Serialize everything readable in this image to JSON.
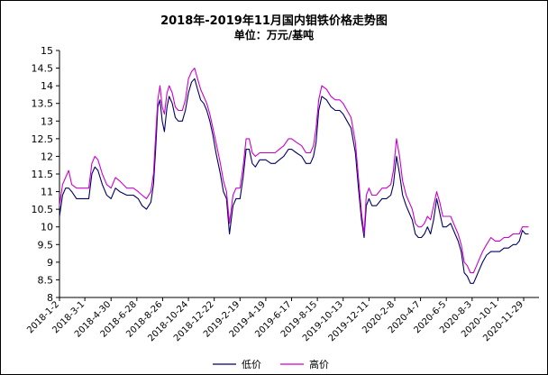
{
  "chart_data": {
    "type": "line",
    "title": "2018年-2019年11月国内钼铁价格走势图",
    "subtitle": "单位：万元/基吨",
    "xlabel": "",
    "ylabel": "",
    "ylim": [
      8,
      15
    ],
    "yticks": [
      "8",
      "8.5",
      "9",
      "9.5",
      "10",
      "10.5",
      "11",
      "11.5",
      "12",
      "12.5",
      "13",
      "13.5",
      "14",
      "14.5",
      "15"
    ],
    "x_tick_labels": [
      "2018-1-2",
      "2018-3-1",
      "2018-4-30",
      "2018-6-28",
      "2018-8-26",
      "2018-10-24",
      "2018-12-22",
      "2019-2-19",
      "2019-4-19",
      "2019-6-17",
      "2019-8-15",
      "2019-10-13",
      "2019-12-11",
      "2020-2-8",
      "2020-4-7",
      "2020-6-5",
      "2020-8-3",
      "2020-10-1",
      "2020-11-29"
    ],
    "x_range": [
      "2018-1-2",
      "2021-1-3"
    ],
    "grid": false,
    "legend_position": "bottom",
    "series": [
      {
        "name": "低价",
        "color": "#000066",
        "points": [
          [
            "2018-1-2",
            10.3
          ],
          [
            "2018-1-9",
            10.9
          ],
          [
            "2018-1-16",
            11.1
          ],
          [
            "2018-1-23",
            11.1
          ],
          [
            "2018-1-30",
            11.0
          ],
          [
            "2018-2-10",
            10.8
          ],
          [
            "2018-2-28",
            10.8
          ],
          [
            "2018-3-10",
            10.8
          ],
          [
            "2018-3-17",
            11.5
          ],
          [
            "2018-3-24",
            11.7
          ],
          [
            "2018-3-31",
            11.6
          ],
          [
            "2018-4-10",
            11.2
          ],
          [
            "2018-4-20",
            10.9
          ],
          [
            "2018-4-30",
            10.8
          ],
          [
            "2018-5-10",
            11.1
          ],
          [
            "2018-5-20",
            11.0
          ],
          [
            "2018-6-5",
            10.9
          ],
          [
            "2018-6-20",
            10.9
          ],
          [
            "2018-7-1",
            10.8
          ],
          [
            "2018-7-10",
            10.6
          ],
          [
            "2018-7-20",
            10.5
          ],
          [
            "2018-7-30",
            10.7
          ],
          [
            "2018-8-5",
            11.2
          ],
          [
            "2018-8-10",
            12.2
          ],
          [
            "2018-8-15",
            13.4
          ],
          [
            "2018-8-20",
            13.6
          ],
          [
            "2018-8-25",
            13.0
          ],
          [
            "2018-8-30",
            12.7
          ],
          [
            "2018-9-5",
            13.4
          ],
          [
            "2018-9-10",
            13.7
          ],
          [
            "2018-9-17",
            13.5
          ],
          [
            "2018-9-24",
            13.1
          ],
          [
            "2018-10-1",
            13.0
          ],
          [
            "2018-10-10",
            13.0
          ],
          [
            "2018-10-17",
            13.3
          ],
          [
            "2018-10-24",
            13.8
          ],
          [
            "2018-10-31",
            14.1
          ],
          [
            "2018-11-7",
            14.2
          ],
          [
            "2018-11-14",
            13.9
          ],
          [
            "2018-11-21",
            13.6
          ],
          [
            "2018-11-28",
            13.5
          ],
          [
            "2018-12-5",
            13.3
          ],
          [
            "2018-12-12",
            13.0
          ],
          [
            "2018-12-19",
            12.6
          ],
          [
            "2018-12-26",
            12.1
          ],
          [
            "2019-1-5",
            11.5
          ],
          [
            "2019-1-12",
            11.0
          ],
          [
            "2019-1-19",
            10.8
          ],
          [
            "2019-1-26",
            9.8
          ],
          [
            "2019-2-3",
            10.6
          ],
          [
            "2019-2-10",
            10.8
          ],
          [
            "2019-2-19",
            10.8
          ],
          [
            "2019-2-26",
            11.4
          ],
          [
            "2019-3-5",
            12.2
          ],
          [
            "2019-3-12",
            12.2
          ],
          [
            "2019-3-19",
            11.8
          ],
          [
            "2019-3-26",
            11.7
          ],
          [
            "2019-4-5",
            11.9
          ],
          [
            "2019-4-19",
            11.9
          ],
          [
            "2019-5-1",
            11.8
          ],
          [
            "2019-5-10",
            11.8
          ],
          [
            "2019-5-20",
            11.9
          ],
          [
            "2019-5-30",
            12.0
          ],
          [
            "2019-6-10",
            12.2
          ],
          [
            "2019-6-17",
            12.2
          ],
          [
            "2019-6-28",
            12.1
          ],
          [
            "2019-7-10",
            12.0
          ],
          [
            "2019-7-20",
            11.8
          ],
          [
            "2019-7-30",
            11.8
          ],
          [
            "2019-8-6",
            12.0
          ],
          [
            "2019-8-12",
            12.4
          ],
          [
            "2019-8-18",
            13.3
          ],
          [
            "2019-8-25",
            13.7
          ],
          [
            "2019-9-5",
            13.6
          ],
          [
            "2019-9-15",
            13.4
          ],
          [
            "2019-9-25",
            13.3
          ],
          [
            "2019-10-5",
            13.3
          ],
          [
            "2019-10-13",
            13.2
          ],
          [
            "2019-10-22",
            13.0
          ],
          [
            "2019-10-31",
            12.8
          ],
          [
            "2019-11-10",
            12.1
          ],
          [
            "2019-11-17",
            11.1
          ],
          [
            "2019-11-24",
            10.2
          ],
          [
            "2019-11-30",
            9.7
          ],
          [
            "2019-12-5",
            10.6
          ],
          [
            "2019-12-11",
            10.8
          ],
          [
            "2019-12-18",
            10.6
          ],
          [
            "2019-12-28",
            10.6
          ],
          [
            "2020-1-10",
            10.8
          ],
          [
            "2020-1-20",
            10.8
          ],
          [
            "2020-1-30",
            10.9
          ],
          [
            "2020-2-5",
            11.2
          ],
          [
            "2020-2-12",
            12.0
          ],
          [
            "2020-2-19",
            11.5
          ],
          [
            "2020-2-26",
            10.9
          ],
          [
            "2020-3-5",
            10.6
          ],
          [
            "2020-3-12",
            10.4
          ],
          [
            "2020-3-19",
            10.2
          ],
          [
            "2020-3-26",
            9.8
          ],
          [
            "2020-4-2",
            9.7
          ],
          [
            "2020-4-9",
            9.7
          ],
          [
            "2020-4-16",
            9.8
          ],
          [
            "2020-4-23",
            10.0
          ],
          [
            "2020-4-30",
            9.8
          ],
          [
            "2020-5-7",
            10.2
          ],
          [
            "2020-5-14",
            10.8
          ],
          [
            "2020-5-21",
            10.4
          ],
          [
            "2020-5-28",
            10.0
          ],
          [
            "2020-6-5",
            10.0
          ],
          [
            "2020-6-15",
            10.1
          ],
          [
            "2020-6-25",
            9.8
          ],
          [
            "2020-7-2",
            9.6
          ],
          [
            "2020-7-9",
            9.3
          ],
          [
            "2020-7-16",
            8.7
          ],
          [
            "2020-7-23",
            8.6
          ],
          [
            "2020-7-30",
            8.4
          ],
          [
            "2020-8-6",
            8.4
          ],
          [
            "2020-8-13",
            8.6
          ],
          [
            "2020-8-20",
            8.8
          ],
          [
            "2020-8-27",
            9.0
          ],
          [
            "2020-9-5",
            9.2
          ],
          [
            "2020-9-15",
            9.3
          ],
          [
            "2020-9-25",
            9.3
          ],
          [
            "2020-10-5",
            9.3
          ],
          [
            "2020-10-15",
            9.4
          ],
          [
            "2020-10-25",
            9.4
          ],
          [
            "2020-11-5",
            9.5
          ],
          [
            "2020-11-12",
            9.5
          ],
          [
            "2020-11-19",
            9.6
          ],
          [
            "2020-11-26",
            9.9
          ],
          [
            "2020-12-3",
            9.8
          ],
          [
            "2020-12-10",
            9.8
          ]
        ]
      },
      {
        "name": "高价",
        "color": "#cc00cc",
        "points": [
          [
            "2018-1-2",
            10.6
          ],
          [
            "2018-1-9",
            11.2
          ],
          [
            "2018-1-16",
            11.4
          ],
          [
            "2018-1-23",
            11.6
          ],
          [
            "2018-1-30",
            11.2
          ],
          [
            "2018-2-10",
            11.1
          ],
          [
            "2018-2-28",
            11.1
          ],
          [
            "2018-3-10",
            11.1
          ],
          [
            "2018-3-17",
            11.8
          ],
          [
            "2018-3-24",
            12.0
          ],
          [
            "2018-3-31",
            11.9
          ],
          [
            "2018-4-10",
            11.5
          ],
          [
            "2018-4-20",
            11.2
          ],
          [
            "2018-4-30",
            11.1
          ],
          [
            "2018-5-10",
            11.4
          ],
          [
            "2018-5-20",
            11.3
          ],
          [
            "2018-6-5",
            11.1
          ],
          [
            "2018-6-20",
            11.1
          ],
          [
            "2018-7-1",
            11.0
          ],
          [
            "2018-7-10",
            10.9
          ],
          [
            "2018-7-20",
            10.8
          ],
          [
            "2018-7-30",
            11.0
          ],
          [
            "2018-8-5",
            11.5
          ],
          [
            "2018-8-10",
            12.6
          ],
          [
            "2018-8-15",
            13.6
          ],
          [
            "2018-8-20",
            14.0
          ],
          [
            "2018-8-25",
            13.4
          ],
          [
            "2018-8-30",
            13.2
          ],
          [
            "2018-9-5",
            13.8
          ],
          [
            "2018-9-10",
            14.0
          ],
          [
            "2018-9-17",
            13.8
          ],
          [
            "2018-9-24",
            13.4
          ],
          [
            "2018-10-1",
            13.3
          ],
          [
            "2018-10-10",
            13.3
          ],
          [
            "2018-10-17",
            13.6
          ],
          [
            "2018-10-24",
            14.2
          ],
          [
            "2018-10-31",
            14.4
          ],
          [
            "2018-11-7",
            14.5
          ],
          [
            "2018-11-14",
            14.2
          ],
          [
            "2018-11-21",
            13.9
          ],
          [
            "2018-11-28",
            13.7
          ],
          [
            "2018-12-5",
            13.5
          ],
          [
            "2018-12-12",
            13.2
          ],
          [
            "2018-12-19",
            12.8
          ],
          [
            "2018-12-26",
            12.4
          ],
          [
            "2019-1-5",
            11.8
          ],
          [
            "2019-1-12",
            11.3
          ],
          [
            "2019-1-19",
            11.0
          ],
          [
            "2019-1-26",
            10.1
          ],
          [
            "2019-2-3",
            10.9
          ],
          [
            "2019-2-10",
            11.1
          ],
          [
            "2019-2-19",
            11.1
          ],
          [
            "2019-2-26",
            11.7
          ],
          [
            "2019-3-5",
            12.5
          ],
          [
            "2019-3-12",
            12.5
          ],
          [
            "2019-3-19",
            12.1
          ],
          [
            "2019-3-26",
            12.0
          ],
          [
            "2019-4-5",
            12.1
          ],
          [
            "2019-4-19",
            12.1
          ],
          [
            "2019-5-1",
            12.1
          ],
          [
            "2019-5-10",
            12.1
          ],
          [
            "2019-5-20",
            12.2
          ],
          [
            "2019-5-30",
            12.3
          ],
          [
            "2019-6-10",
            12.5
          ],
          [
            "2019-6-17",
            12.5
          ],
          [
            "2019-6-28",
            12.4
          ],
          [
            "2019-7-10",
            12.3
          ],
          [
            "2019-7-20",
            12.1
          ],
          [
            "2019-7-30",
            12.1
          ],
          [
            "2019-8-6",
            12.3
          ],
          [
            "2019-8-12",
            12.8
          ],
          [
            "2019-8-18",
            13.6
          ],
          [
            "2019-8-25",
            14.0
          ],
          [
            "2019-9-5",
            13.9
          ],
          [
            "2019-9-15",
            13.7
          ],
          [
            "2019-9-25",
            13.6
          ],
          [
            "2019-10-5",
            13.6
          ],
          [
            "2019-10-13",
            13.5
          ],
          [
            "2019-10-22",
            13.3
          ],
          [
            "2019-10-31",
            13.1
          ],
          [
            "2019-11-10",
            12.4
          ],
          [
            "2019-11-17",
            11.4
          ],
          [
            "2019-11-24",
            10.4
          ],
          [
            "2019-11-30",
            9.8
          ],
          [
            "2019-12-5",
            10.9
          ],
          [
            "2019-12-11",
            11.1
          ],
          [
            "2019-12-18",
            10.9
          ],
          [
            "2019-12-28",
            10.9
          ],
          [
            "2020-1-10",
            11.1
          ],
          [
            "2020-1-20",
            11.1
          ],
          [
            "2020-1-30",
            11.2
          ],
          [
            "2020-2-5",
            11.6
          ],
          [
            "2020-2-12",
            12.5
          ],
          [
            "2020-2-19",
            12.0
          ],
          [
            "2020-2-26",
            11.3
          ],
          [
            "2020-3-5",
            10.9
          ],
          [
            "2020-3-12",
            10.7
          ],
          [
            "2020-3-19",
            10.5
          ],
          [
            "2020-3-26",
            10.1
          ],
          [
            "2020-4-2",
            10.0
          ],
          [
            "2020-4-9",
            10.0
          ],
          [
            "2020-4-16",
            10.1
          ],
          [
            "2020-4-23",
            10.3
          ],
          [
            "2020-4-30",
            10.2
          ],
          [
            "2020-5-7",
            10.6
          ],
          [
            "2020-5-14",
            11.0
          ],
          [
            "2020-5-21",
            10.7
          ],
          [
            "2020-5-28",
            10.3
          ],
          [
            "2020-6-5",
            10.3
          ],
          [
            "2020-6-15",
            10.3
          ],
          [
            "2020-6-25",
            10.0
          ],
          [
            "2020-7-2",
            9.8
          ],
          [
            "2020-7-9",
            9.5
          ],
          [
            "2020-7-16",
            9.0
          ],
          [
            "2020-7-23",
            8.9
          ],
          [
            "2020-7-30",
            8.7
          ],
          [
            "2020-8-6",
            8.7
          ],
          [
            "2020-8-13",
            8.9
          ],
          [
            "2020-8-20",
            9.1
          ],
          [
            "2020-8-27",
            9.3
          ],
          [
            "2020-9-5",
            9.5
          ],
          [
            "2020-9-15",
            9.7
          ],
          [
            "2020-9-25",
            9.6
          ],
          [
            "2020-10-5",
            9.6
          ],
          [
            "2020-10-15",
            9.7
          ],
          [
            "2020-10-25",
            9.7
          ],
          [
            "2020-11-5",
            9.8
          ],
          [
            "2020-11-12",
            9.8
          ],
          [
            "2020-11-19",
            9.8
          ],
          [
            "2020-11-26",
            10.0
          ],
          [
            "2020-12-3",
            10.0
          ],
          [
            "2020-12-10",
            10.0
          ]
        ]
      }
    ]
  }
}
